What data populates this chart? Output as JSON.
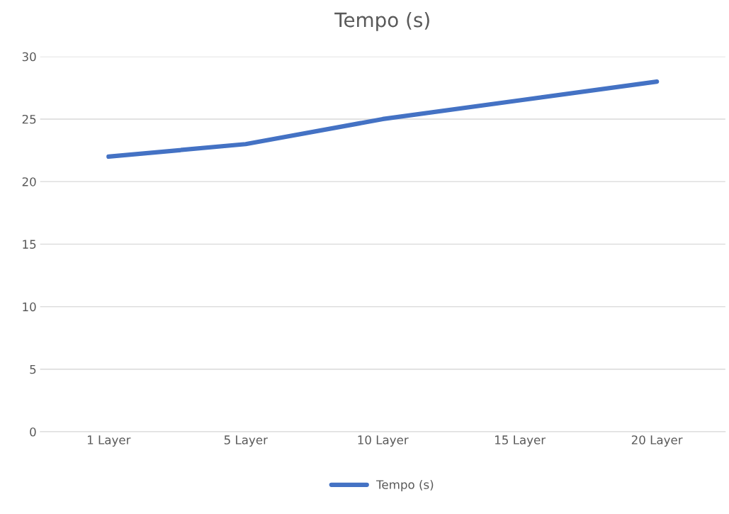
{
  "chart_data": {
    "type": "line",
    "title": "Tempo (s)",
    "categories": [
      "1 Layer",
      "5 Layer",
      "10 Layer",
      "15 Layer",
      "20 Layer"
    ],
    "series": [
      {
        "name": "Tempo (s)",
        "color": "#4472c4",
        "values": [
          22,
          23,
          25,
          26.5,
          28
        ]
      }
    ],
    "ylim": [
      0,
      30
    ],
    "yticks": [
      0,
      5,
      10,
      15,
      20,
      25,
      30
    ],
    "grid": "y",
    "legend": "bottom",
    "marker": "none",
    "line_style": "solid"
  }
}
